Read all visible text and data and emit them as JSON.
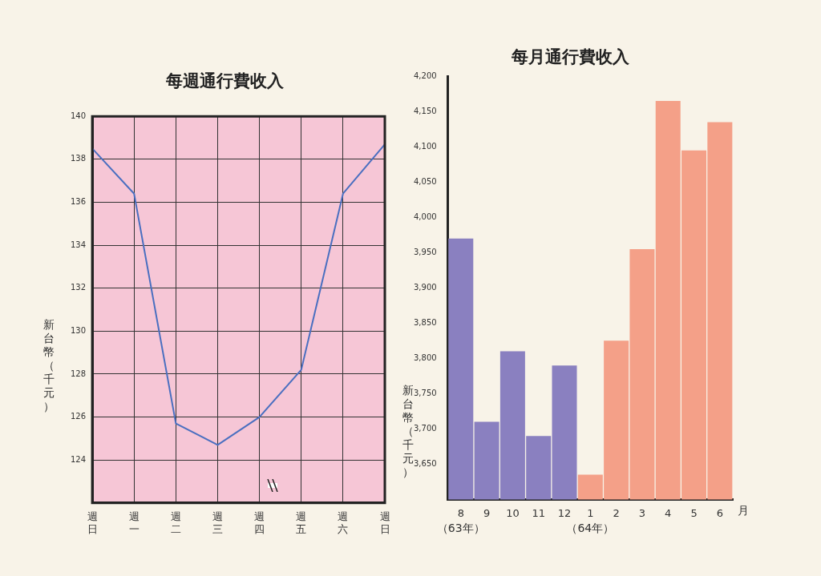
{
  "chart_data": [
    {
      "type": "line",
      "title": "每週通行費收入",
      "ylabel": "新台幣（千元）",
      "categories": [
        "週日",
        "週一",
        "週二",
        "週三",
        "週四",
        "週五",
        "週六",
        "週日"
      ],
      "series": [
        {
          "color": "#4a6fc0",
          "values": [
            138.5,
            136.4,
            125.7,
            124.7,
            126.0,
            128.2,
            136.4,
            138.7
          ]
        }
      ],
      "ylim": [
        122,
        140
      ],
      "yticks": [
        124,
        126,
        128,
        130,
        132,
        134,
        136,
        138,
        140
      ],
      "grid": true,
      "marker": "none"
    },
    {
      "type": "bar",
      "title": "每月通行費收入",
      "ylabel": "新台幣（千元）",
      "xlabel": "月",
      "categories": [
        "8",
        "9",
        "10",
        "11",
        "12",
        "1",
        "2",
        "3",
        "4",
        "5",
        "6"
      ],
      "values": [
        3970,
        3710,
        3810,
        3690,
        3790,
        3635,
        3825,
        3955,
        4165,
        4095,
        4135
      ],
      "colors": [
        "#8a80c0",
        "#8a80c0",
        "#8a80c0",
        "#8a80c0",
        "#8a80c0",
        "#f4a088",
        "#f4a088",
        "#f4a088",
        "#f4a088",
        "#f4a088",
        "#f4a088"
      ],
      "ylim": [
        3600,
        4200
      ],
      "yticks": [
        {
          "value": 3650,
          "label": "3,650"
        },
        {
          "value": 3700,
          "label": "3,700"
        },
        {
          "value": 3750,
          "label": "3,750"
        },
        {
          "value": 3800,
          "label": "3,800"
        },
        {
          "value": 3850,
          "label": "3,850"
        },
        {
          "value": 3900,
          "label": "3,900"
        },
        {
          "value": 3950,
          "label": "3,950"
        },
        {
          "value": 4000,
          "label": "4,000"
        },
        {
          "value": 4050,
          "label": "4,050"
        },
        {
          "value": 4100,
          "label": "4,100"
        },
        {
          "value": 4150,
          "label": "4,150"
        },
        {
          "value": 4200,
          "label": "4,200"
        }
      ],
      "annotations": [
        "（63年）",
        "（64年）"
      ]
    }
  ]
}
